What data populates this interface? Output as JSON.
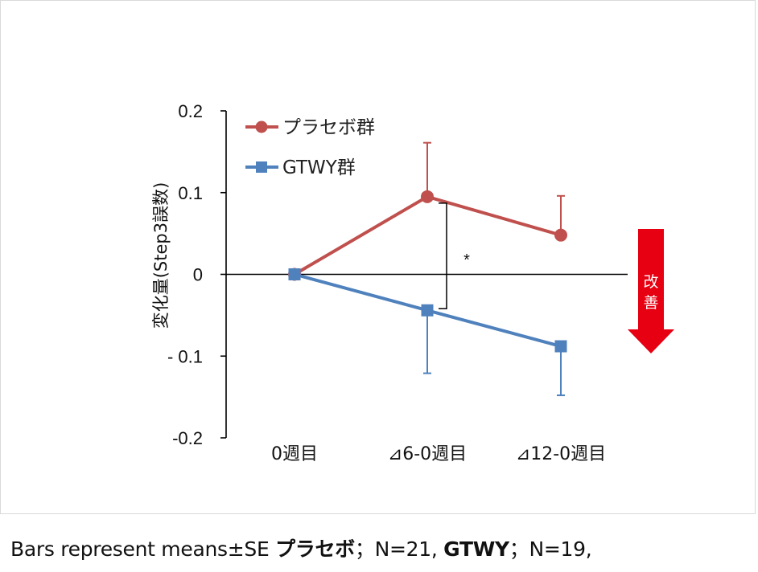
{
  "chart_data": {
    "type": "line",
    "ylabel": "変化量(Step3誤数)",
    "ylim": [
      -0.2,
      0.2
    ],
    "yticks": [
      "0.2",
      "0.1",
      "0",
      "- 0.1",
      "-0.2"
    ],
    "categories": [
      "0週目",
      "⊿6-0週目",
      "⊿12-0週目"
    ],
    "legend_position": "top-left",
    "grid": false,
    "series": [
      {
        "name": "プラセボ群",
        "color": "#c0504d",
        "marker": "circle",
        "values": [
          0,
          0.095,
          0.048
        ],
        "error": [
          0,
          0.066,
          0.048
        ]
      },
      {
        "name": "GTWY群",
        "color": "#4f81bd",
        "marker": "square",
        "values": [
          0,
          -0.044,
          -0.088
        ],
        "error": [
          0,
          0.077,
          0.06
        ]
      }
    ],
    "significance": {
      "marker": "*",
      "category_index": 1
    },
    "arrow": {
      "label_chars": [
        "改",
        "善"
      ],
      "color": "#e60012"
    }
  },
  "footnote": {
    "part1": "Bars represent means±SE ",
    "part2": "プラセボ",
    "part3": "；N=21,  ",
    "part4": "GTWY",
    "part5": "；N=19,"
  }
}
